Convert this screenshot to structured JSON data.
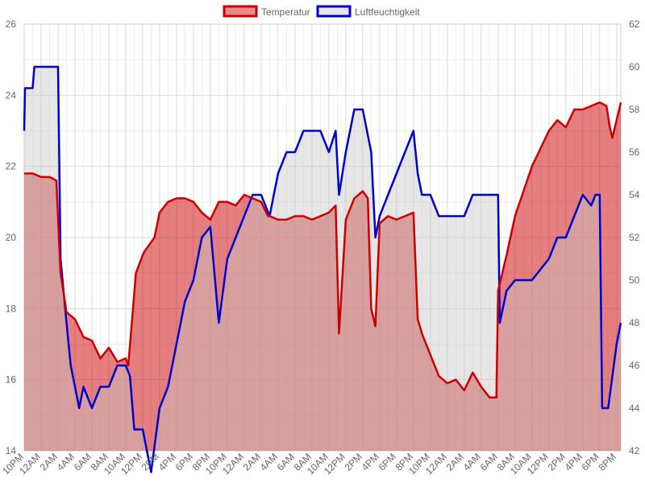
{
  "chart_data": {
    "type": "line",
    "legend_position": "top",
    "grid": true,
    "x_tick_labels": [
      "10PM",
      "12AM",
      "2AM",
      "4AM",
      "6AM",
      "8AM",
      "10AM",
      "12PM",
      "2PM",
      "4PM",
      "6PM",
      "8PM",
      "10PM",
      "12AM",
      "2AM",
      "4AM",
      "6AM",
      "8AM",
      "10AM",
      "12PM",
      "2PM",
      "4PM",
      "6PM",
      "8PM",
      "10PM",
      "12AM",
      "2AM",
      "4AM",
      "6AM",
      "8AM",
      "10AM",
      "12PM",
      "2PM",
      "4PM",
      "6PM",
      "8PM"
    ],
    "x_hours_range": [
      0,
      70.5
    ],
    "axes": {
      "left": {
        "ylim": [
          14,
          26
        ],
        "ticks": [
          14,
          16,
          18,
          20,
          22,
          24,
          26
        ]
      },
      "right": {
        "ylim": [
          42,
          62
        ],
        "ticks": [
          42,
          44,
          46,
          48,
          50,
          52,
          54,
          56,
          58,
          60,
          62
        ]
      }
    },
    "series": [
      {
        "name": "Temperatur",
        "axis": "left",
        "color": "#cc0000",
        "fill": "rgba(204,0,0,0.5)",
        "points": [
          [
            0,
            21.8
          ],
          [
            1,
            21.8
          ],
          [
            2,
            21.7
          ],
          [
            3,
            21.7
          ],
          [
            3.8,
            21.6
          ],
          [
            4.3,
            19
          ],
          [
            5,
            17.9
          ],
          [
            6,
            17.7
          ],
          [
            7,
            17.2
          ],
          [
            8,
            17.1
          ],
          [
            9,
            16.6
          ],
          [
            10,
            16.9
          ],
          [
            11,
            16.5
          ],
          [
            12,
            16.6
          ],
          [
            12.3,
            16.4
          ],
          [
            13.2,
            19
          ],
          [
            14,
            19.5
          ],
          [
            14.2,
            19.6
          ],
          [
            15.4,
            20
          ],
          [
            16,
            20.7
          ],
          [
            17,
            21
          ],
          [
            18,
            21.1
          ],
          [
            19,
            21.1
          ],
          [
            20,
            21
          ],
          [
            21,
            20.7
          ],
          [
            22,
            20.5
          ],
          [
            23,
            21
          ],
          [
            24,
            21
          ],
          [
            25,
            20.9
          ],
          [
            26,
            21.2
          ],
          [
            27,
            21.1
          ],
          [
            28,
            21
          ],
          [
            28.8,
            20.6
          ],
          [
            29,
            20.6
          ],
          [
            30,
            20.5
          ],
          [
            31,
            20.5
          ],
          [
            32,
            20.6
          ],
          [
            33,
            20.6
          ],
          [
            34,
            20.5
          ],
          [
            35,
            20.6
          ],
          [
            36,
            20.7
          ],
          [
            36.8,
            20.9
          ],
          [
            37.2,
            17.3
          ],
          [
            38,
            20.5
          ],
          [
            39,
            21.1
          ],
          [
            40,
            21.3
          ],
          [
            40.6,
            21.1
          ],
          [
            41,
            18
          ],
          [
            41.5,
            17.5
          ],
          [
            42,
            20.4
          ],
          [
            43,
            20.6
          ],
          [
            44,
            20.5
          ],
          [
            45,
            20.6
          ],
          [
            46,
            20.7
          ],
          [
            46.5,
            17.7
          ],
          [
            47,
            17.3
          ],
          [
            48,
            16.7
          ],
          [
            49,
            16.1
          ],
          [
            50,
            15.9
          ],
          [
            51,
            16
          ],
          [
            52,
            15.7
          ],
          [
            53,
            16.2
          ],
          [
            54,
            15.8
          ],
          [
            55,
            15.5
          ],
          [
            55.8,
            15.5
          ],
          [
            56,
            18.5
          ],
          [
            57,
            19.5
          ],
          [
            58,
            20.6
          ],
          [
            59,
            21.3
          ],
          [
            60,
            22
          ],
          [
            61,
            22.5
          ],
          [
            62,
            23
          ],
          [
            63,
            23.3
          ],
          [
            64,
            23.1
          ],
          [
            65,
            23.6
          ],
          [
            66,
            23.6
          ],
          [
            67,
            23.7
          ],
          [
            68,
            23.8
          ],
          [
            68.8,
            23.7
          ],
          [
            69.2,
            23.1
          ],
          [
            69.5,
            22.8
          ],
          [
            70,
            23.3
          ],
          [
            70.5,
            23.8
          ]
        ]
      },
      {
        "name": "Luftfeuchtigkeit",
        "axis": "right",
        "color": "#0000cc",
        "fill": "rgba(200,200,200,0.45)",
        "points": [
          [
            0,
            57
          ],
          [
            0.1,
            59
          ],
          [
            1,
            59
          ],
          [
            1.2,
            60
          ],
          [
            2,
            60
          ],
          [
            4,
            60
          ],
          [
            4.3,
            51
          ],
          [
            5,
            48
          ],
          [
            5.5,
            46
          ],
          [
            6,
            45
          ],
          [
            6.5,
            44
          ],
          [
            7,
            45
          ],
          [
            8,
            44
          ],
          [
            9,
            45
          ],
          [
            10,
            45
          ],
          [
            11,
            46
          ],
          [
            12,
            46
          ],
          [
            12.5,
            45.5
          ],
          [
            13,
            43
          ],
          [
            14,
            43
          ],
          [
            15,
            41
          ],
          [
            16,
            44
          ],
          [
            17,
            45
          ],
          [
            18,
            47
          ],
          [
            19,
            49
          ],
          [
            20,
            50
          ],
          [
            21,
            52
          ],
          [
            22,
            52.5
          ],
          [
            23,
            48
          ],
          [
            24,
            51
          ],
          [
            25,
            52
          ],
          [
            26,
            53
          ],
          [
            27,
            54
          ],
          [
            28,
            54
          ],
          [
            29,
            53
          ],
          [
            29.5,
            54
          ],
          [
            30,
            55
          ],
          [
            31,
            56
          ],
          [
            32,
            56
          ],
          [
            33,
            57
          ],
          [
            34,
            57
          ],
          [
            35,
            57
          ],
          [
            36,
            56
          ],
          [
            36.8,
            57
          ],
          [
            37.2,
            54
          ],
          [
            38,
            56
          ],
          [
            39,
            58
          ],
          [
            40,
            58
          ],
          [
            41,
            56
          ],
          [
            41.5,
            52
          ],
          [
            42,
            53
          ],
          [
            43,
            54
          ],
          [
            44,
            55
          ],
          [
            45,
            56
          ],
          [
            46,
            57
          ],
          [
            46.5,
            55
          ],
          [
            47,
            54
          ],
          [
            48,
            54
          ],
          [
            49,
            53
          ],
          [
            50,
            53
          ],
          [
            51,
            53
          ],
          [
            52,
            53
          ],
          [
            53,
            54
          ],
          [
            54,
            54
          ],
          [
            55,
            54
          ],
          [
            56,
            54
          ],
          [
            56.2,
            48
          ],
          [
            57,
            49.5
          ],
          [
            58,
            50
          ],
          [
            59,
            50
          ],
          [
            60,
            50
          ],
          [
            61,
            50.5
          ],
          [
            62,
            51
          ],
          [
            63,
            52
          ],
          [
            64,
            52
          ],
          [
            65,
            53
          ],
          [
            66,
            54
          ],
          [
            67,
            53.5
          ],
          [
            67.5,
            54
          ],
          [
            68,
            54
          ],
          [
            68.3,
            44
          ],
          [
            69,
            44
          ],
          [
            70,
            47
          ],
          [
            70.5,
            48
          ]
        ]
      }
    ]
  },
  "legend": [
    {
      "label": "Temperatur",
      "border": "#cc0000",
      "fill": "#e88a8a"
    },
    {
      "label": "Luftfeuchtigkeit",
      "border": "#0000cc",
      "fill": "#e8e8ec"
    }
  ]
}
